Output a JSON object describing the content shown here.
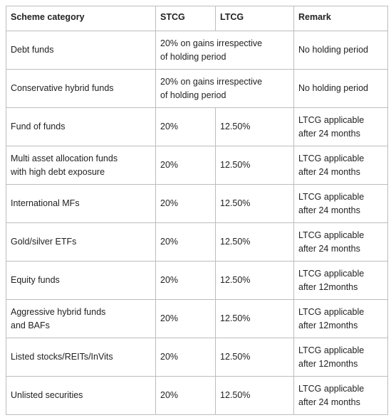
{
  "table": {
    "header": [
      "Scheme category",
      "STCG",
      "LTCG",
      "Remark"
    ],
    "rows": [
      [
        [
          "Debt funds"
        ],
        [
          "20% on gains irrespective",
          "of holding period"
        ],
        [
          "No holding period"
        ]
      ],
      [
        [
          "Conservative hybrid funds"
        ],
        [
          "20% on gains irrespective",
          "of holding period"
        ],
        [
          "No holding period"
        ]
      ],
      [
        [
          "Fund of funds"
        ],
        [
          "20%"
        ],
        [
          "12.50%"
        ],
        [
          "LTCG applicable",
          "after 24 months"
        ]
      ],
      [
        [
          "Multi asset allocation funds",
          "with high debt exposure"
        ],
        [
          "20%"
        ],
        [
          "12.50%"
        ],
        [
          "LTCG applicable",
          "after 24 months"
        ]
      ],
      [
        [
          "International MFs"
        ],
        [
          "20%"
        ],
        [
          "12.50%"
        ],
        [
          "LTCG applicable",
          "after 24 months"
        ]
      ],
      [
        [
          "Gold/silver ETFs"
        ],
        [
          "20%"
        ],
        [
          "12.50%"
        ],
        [
          "LTCG applicable",
          "after 24 months"
        ]
      ],
      [
        [
          "Equity funds"
        ],
        [
          "20%"
        ],
        [
          "12.50%"
        ],
        [
          "LTCG applicable",
          "after 12months"
        ]
      ],
      [
        [
          "Aggressive hybrid funds",
          "and BAFs"
        ],
        [
          "20%"
        ],
        [
          "12.50%"
        ],
        [
          "LTCG applicable",
          "after 12months"
        ]
      ],
      [
        [
          "Listed stocks/REITs/InVits"
        ],
        [
          "20%"
        ],
        [
          "12.50%"
        ],
        [
          "LTCG applicable",
          "after 12months"
        ]
      ],
      [
        [
          "Unlisted securities"
        ],
        [
          "20%"
        ],
        [
          "12.50%"
        ],
        [
          "LTCG applicable",
          "after 24 months"
        ]
      ]
    ]
  }
}
